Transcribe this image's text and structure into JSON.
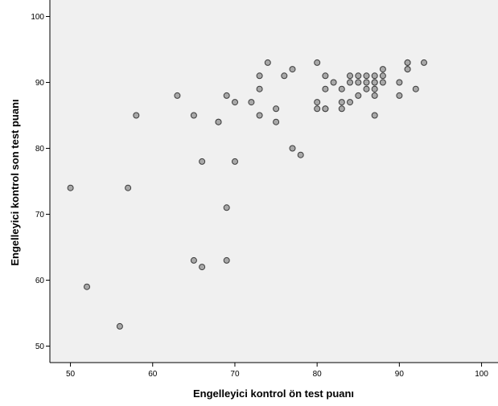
{
  "chart_data": {
    "type": "scatter",
    "title": "",
    "xlabel": "Engelleyici kontrol ön test puanı",
    "ylabel": "Engelleyici kontrol son test puanı",
    "xlim": [
      47.5,
      102
    ],
    "ylim": [
      47.5,
      102.5
    ],
    "x_ticks": [
      50,
      60,
      70,
      80,
      90,
      100
    ],
    "y_ticks": [
      50,
      60,
      70,
      80,
      90,
      100
    ],
    "grid": false,
    "colors": {
      "plot_bg": "#f0f0f0",
      "point_fill": "#a8a8a8",
      "point_stroke": "#3c3c3c",
      "axis": "#000000"
    },
    "points": [
      [
        50,
        74
      ],
      [
        52,
        59
      ],
      [
        56,
        53
      ],
      [
        57,
        74
      ],
      [
        58,
        85
      ],
      [
        63,
        88
      ],
      [
        65,
        85
      ],
      [
        65,
        63
      ],
      [
        66,
        62
      ],
      [
        66,
        78
      ],
      [
        68,
        84
      ],
      [
        68,
        84
      ],
      [
        69,
        88
      ],
      [
        69,
        71
      ],
      [
        69,
        63
      ],
      [
        70,
        87
      ],
      [
        70,
        78
      ],
      [
        72,
        87
      ],
      [
        73,
        91
      ],
      [
        73,
        89
      ],
      [
        73,
        85
      ],
      [
        74,
        93
      ],
      [
        75,
        86
      ],
      [
        75,
        84
      ],
      [
        76,
        91
      ],
      [
        77,
        92
      ],
      [
        77,
        80
      ],
      [
        78,
        79
      ],
      [
        80,
        93
      ],
      [
        80,
        87
      ],
      [
        80,
        86
      ],
      [
        81,
        91
      ],
      [
        81,
        89
      ],
      [
        81,
        86
      ],
      [
        81,
        86
      ],
      [
        82,
        90
      ],
      [
        83,
        89
      ],
      [
        83,
        87
      ],
      [
        83,
        86
      ],
      [
        84,
        91
      ],
      [
        84,
        90
      ],
      [
        84,
        87
      ],
      [
        85,
        91
      ],
      [
        85,
        90
      ],
      [
        85,
        88
      ],
      [
        86,
        91
      ],
      [
        86,
        90
      ],
      [
        86,
        89
      ],
      [
        87,
        91
      ],
      [
        87,
        90
      ],
      [
        87,
        90
      ],
      [
        87,
        89
      ],
      [
        87,
        88
      ],
      [
        87,
        85
      ],
      [
        88,
        92
      ],
      [
        88,
        91
      ],
      [
        88,
        90
      ],
      [
        90,
        90
      ],
      [
        90,
        88
      ],
      [
        91,
        93
      ],
      [
        91,
        93
      ],
      [
        91,
        92
      ],
      [
        91,
        92
      ],
      [
        92,
        89
      ],
      [
        93,
        93
      ]
    ]
  }
}
